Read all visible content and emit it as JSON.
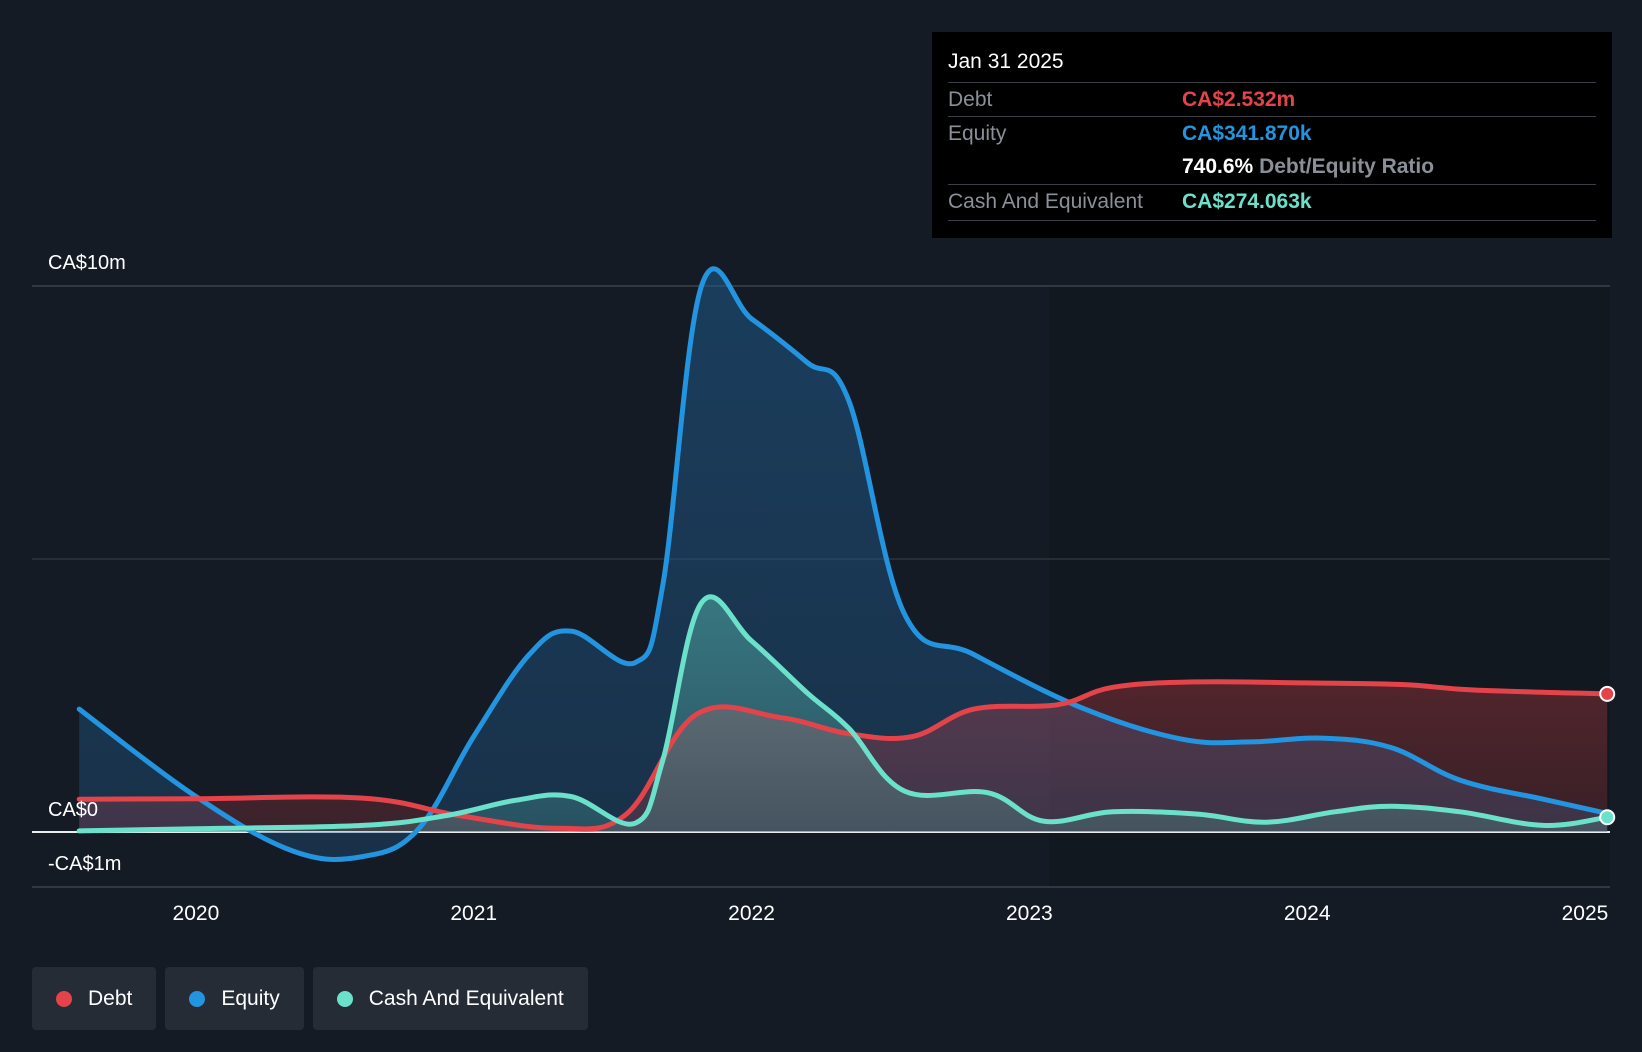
{
  "chart_data": {
    "type": "area",
    "x_ticks": [
      "2020",
      "2021",
      "2022",
      "2023",
      "2024",
      "2025"
    ],
    "y_ticks": [
      {
        "value": 10,
        "label": "CA$10m"
      },
      {
        "value": 0,
        "label": "CA$0"
      },
      {
        "value": -1,
        "label": "-CA$1m"
      }
    ],
    "ylim": [
      -1,
      10
    ],
    "xlim": [
      2019.41,
      2025.09
    ],
    "grid": true,
    "series": [
      {
        "name": "Debt",
        "color": "#e5434a",
        "x": [
          2019.58,
          2020.0,
          2020.6,
          2020.95,
          2021.3,
          2021.55,
          2021.8,
          2022.1,
          2022.35,
          2022.58,
          2022.8,
          2023.1,
          2023.3,
          2023.6,
          2024.0,
          2024.35,
          2024.6,
          2025.08
        ],
        "values": [
          0.6,
          0.61,
          0.62,
          0.3,
          0.07,
          0.33,
          2.15,
          2.1,
          1.8,
          1.75,
          2.25,
          2.33,
          2.65,
          2.75,
          2.73,
          2.7,
          2.6,
          2.53
        ]
      },
      {
        "name": "Equity",
        "color": "#2394df",
        "x": [
          2019.58,
          2020.0,
          2020.35,
          2020.6,
          2020.8,
          2021.0,
          2021.2,
          2021.35,
          2021.58,
          2021.68,
          2021.82,
          2022.0,
          2022.2,
          2022.35,
          2022.55,
          2022.8,
          2023.2,
          2023.55,
          2023.8,
          2024.05,
          2024.3,
          2024.55,
          2024.85,
          2025.08
        ],
        "values": [
          2.25,
          0.65,
          -0.35,
          -0.45,
          0.05,
          1.75,
          3.25,
          3.68,
          3.1,
          4.5,
          10.0,
          9.4,
          8.6,
          7.9,
          4.0,
          3.25,
          2.25,
          1.7,
          1.65,
          1.72,
          1.55,
          0.95,
          0.6,
          0.34
        ]
      },
      {
        "name": "Cash And Equivalent",
        "color": "#6be0cb",
        "x": [
          2019.58,
          2020.0,
          2020.6,
          2020.9,
          2021.15,
          2021.35,
          2021.58,
          2021.68,
          2021.82,
          2022.0,
          2022.2,
          2022.35,
          2022.55,
          2022.85,
          2023.05,
          2023.3,
          2023.6,
          2023.85,
          2024.1,
          2024.3,
          2024.55,
          2024.85,
          2025.08
        ],
        "values": [
          0.02,
          0.06,
          0.12,
          0.3,
          0.58,
          0.65,
          0.16,
          1.3,
          4.2,
          3.5,
          2.55,
          1.9,
          0.75,
          0.72,
          0.2,
          0.37,
          0.33,
          0.18,
          0.37,
          0.47,
          0.37,
          0.12,
          0.27
        ]
      }
    ]
  },
  "tooltip": {
    "date": "Jan 31 2025",
    "rows": [
      {
        "label": "Debt",
        "value": "CA$2.532m",
        "color": "#e5434a"
      },
      {
        "label": "Equity",
        "value": "CA$341.870k",
        "color": "#2394df"
      },
      {
        "label": "Cash And Equivalent",
        "value": "CA$274.063k",
        "color": "#6be0cb"
      }
    ],
    "ratio_value": "740.6%",
    "ratio_label": "Debt/Equity Ratio"
  },
  "legend": [
    {
      "label": "Debt",
      "color": "#e5434a"
    },
    {
      "label": "Equity",
      "color": "#2394df"
    },
    {
      "label": "Cash And Equivalent",
      "color": "#6be0cb"
    }
  ]
}
